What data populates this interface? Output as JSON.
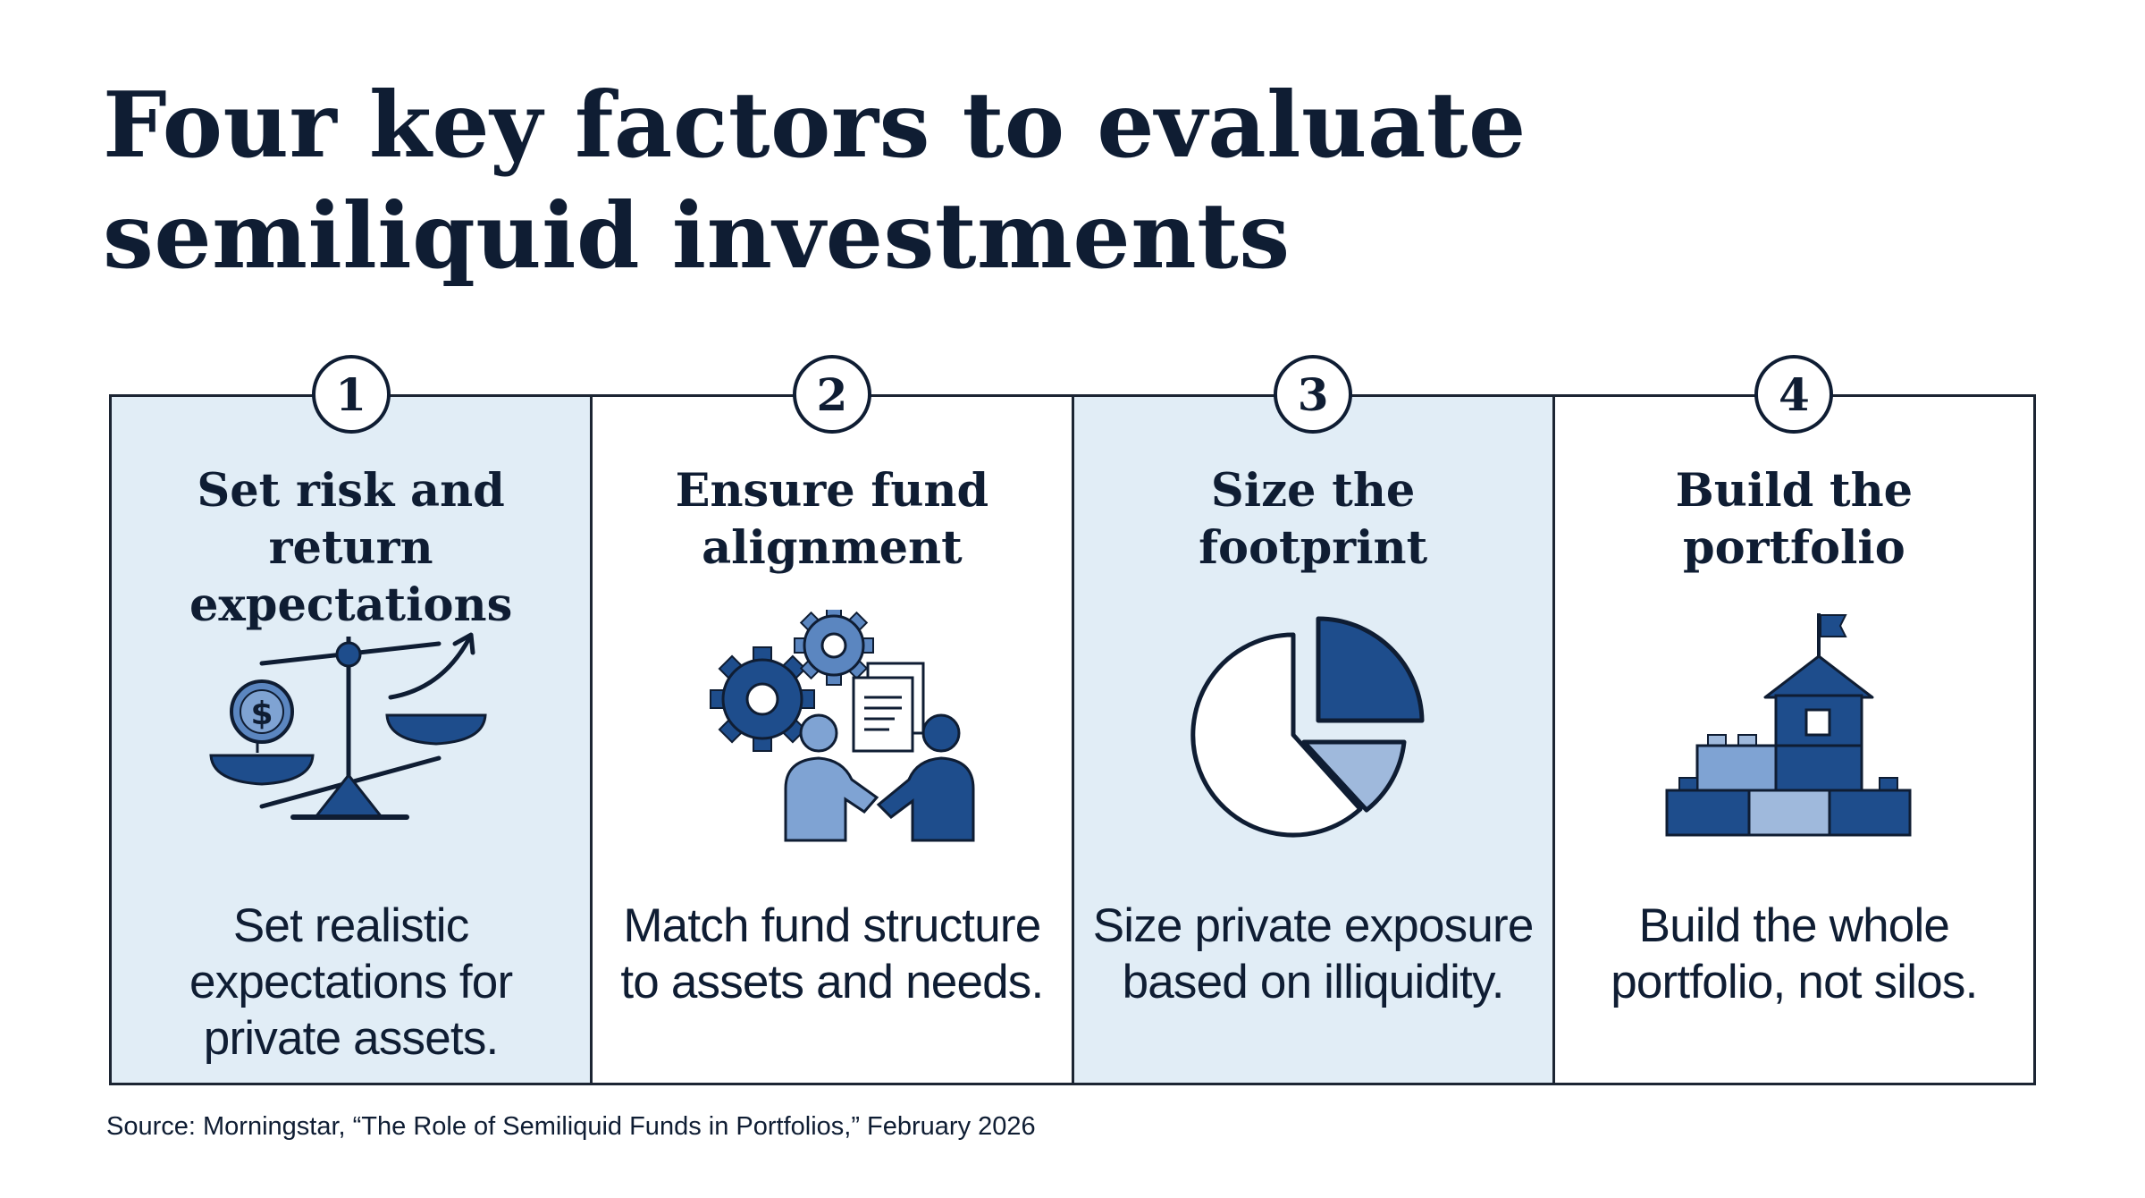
{
  "title": {
    "line1": "Four key factors to evaluate",
    "line2": "semiliquid investments"
  },
  "colors": {
    "navy": "#0f1d33",
    "dark_blue": "#1e4d8c",
    "medium_blue": "#5b86c0",
    "light_blue": "#9fb9dc",
    "panel_tint": "#e1edf6"
  },
  "panels": [
    {
      "number": "1",
      "title_line1": "Set risk and return",
      "title_line2": "expectations",
      "icon": "balance-scale-icon",
      "desc_line1": "Set realistic",
      "desc_line2": "expectations for",
      "desc_line3": "private assets."
    },
    {
      "number": "2",
      "title_line1": "Ensure fund",
      "title_line2": "alignment",
      "icon": "gears-handshake-icon",
      "desc_line1": "Match fund structure",
      "desc_line2": "to assets and needs."
    },
    {
      "number": "3",
      "title_line1": "Size the",
      "title_line2": "footprint",
      "icon": "pie-chart-icon",
      "desc_line1": "Size private exposure",
      "desc_line2": "based on illiquidity."
    },
    {
      "number": "4",
      "title_line1": "Build the",
      "title_line2": "portfolio",
      "icon": "building-blocks-icon",
      "desc_line1": "Build the whole",
      "desc_line2": "portfolio, not silos."
    }
  ],
  "source": "Source: Morningstar, “The Role of Semiliquid Funds in Portfolios,” February 2026"
}
